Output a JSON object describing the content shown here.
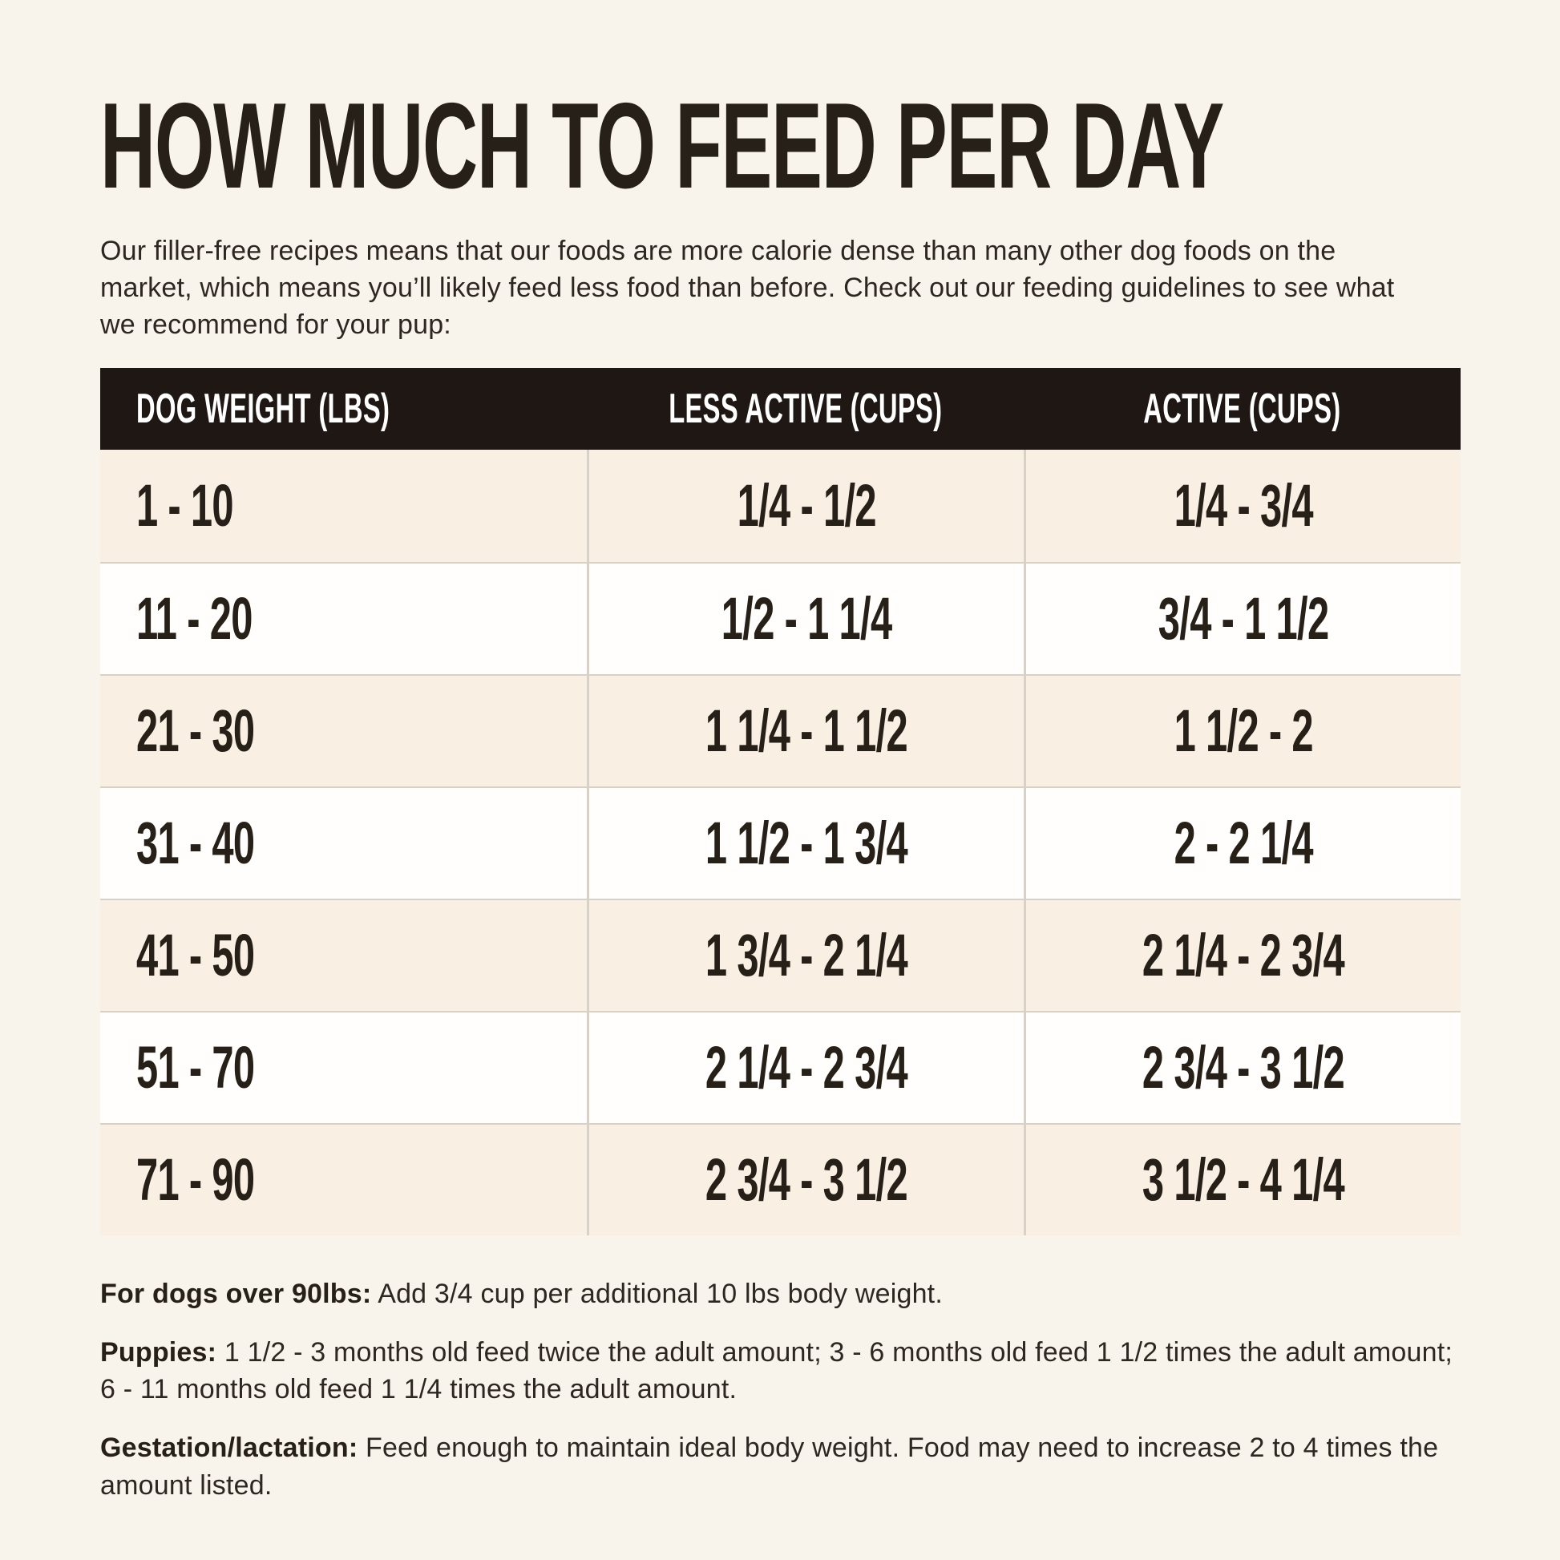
{
  "page": {
    "title": "HOW MUCH TO FEED PER DAY",
    "intro": "Our filler-free recipes means that our foods are more calorie dense than many other dog foods on the market, which means you’ll likely feed less food than before. Check out our feeding guidelines to see what we recommend for your pup:"
  },
  "colors": {
    "page_background": "#f8f3eb",
    "table_header_background": "#1f1713",
    "table_header_text": "#ffffff",
    "row_beige": "#f9efe2",
    "row_white": "#fffefc",
    "text": "#272019"
  },
  "chart_data": {
    "type": "table",
    "title": "HOW MUCH TO FEED PER DAY",
    "columns": [
      "DOG WEIGHT (LBS)",
      "LESS ACTIVE (CUPS)",
      "ACTIVE (CUPS)"
    ],
    "rows": [
      [
        "1 - 10",
        "1/4 - 1/2",
        "1/4 - 3/4"
      ],
      [
        "11 - 20",
        "1/2 - 1 1/4",
        "3/4 - 1 1/2"
      ],
      [
        "21 - 30",
        "1 1/4 - 1 1/2",
        "1 1/2 - 2"
      ],
      [
        "31 - 40",
        "1 1/2 - 1 3/4",
        "2 - 2 1/4"
      ],
      [
        "41 - 50",
        "1 3/4 - 2 1/4",
        "2 1/4 - 2 3/4"
      ],
      [
        "51 - 70",
        "2 1/4 - 2 3/4",
        "2 3/4 - 3 1/2"
      ],
      [
        "71 - 90",
        "2 3/4 - 3 1/2",
        "3 1/2 - 4 1/4"
      ]
    ],
    "layout": {
      "row_striping": [
        "beige",
        "white"
      ],
      "header_style": "dark-bar"
    }
  },
  "notes": [
    {
      "label": "For dogs over 90lbs:",
      "text": "Add 3/4 cup per additional 10 lbs body weight."
    },
    {
      "label": "Puppies:",
      "text": "1 1/2 - 3 months old feed twice the adult amount; 3 - 6 months old feed 1 1/2 times the adult amount; 6 - 11 months old feed 1 1/4 times the adult amount."
    },
    {
      "label": "Gestation/lactation:",
      "text": "Feed enough to maintain ideal body weight. Food may need to increase 2 to 4 times the amount listed."
    }
  ]
}
